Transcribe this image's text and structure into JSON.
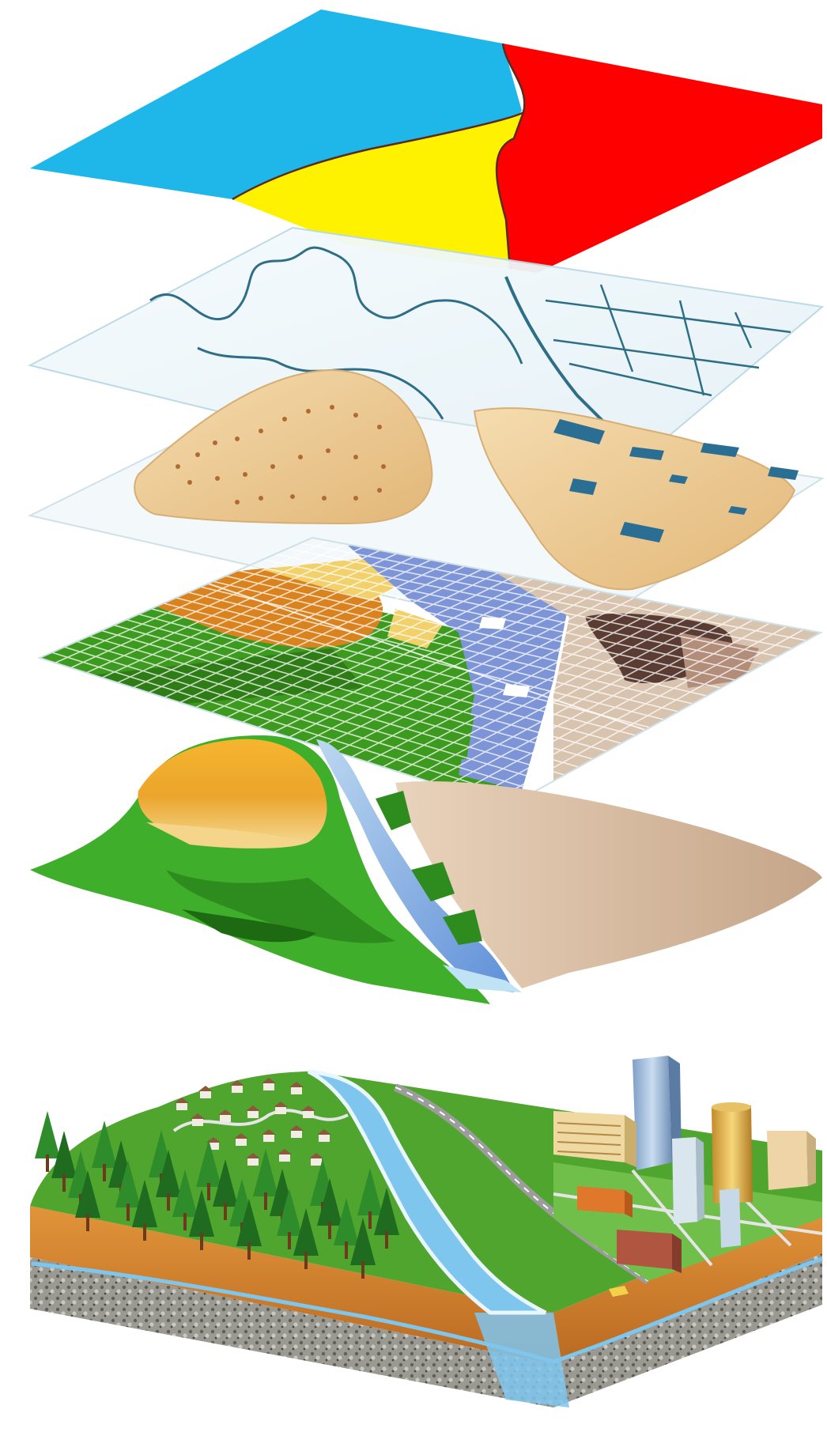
{
  "diagram": {
    "layers": [
      {
        "id": "zones",
        "colors": {
          "water": "#1FB7EA",
          "sand": "#FFF200",
          "fire": "#FF0000"
        }
      },
      {
        "id": "vector-lines",
        "colors": {
          "fill": "#EEF6F9",
          "line": "#2E6E86"
        }
      },
      {
        "id": "terrain-points",
        "colors": {
          "patch": "#E9C48C",
          "dot": "#B06A32",
          "building": "#2B6E93"
        }
      },
      {
        "id": "raster-grid",
        "colors": {
          "green": "#3C9A1E",
          "orange": "#D9821E",
          "blue": "#7D95D6",
          "brown": "#5A3C33"
        }
      },
      {
        "id": "surface",
        "colors": {
          "green": "#3FAE2A",
          "orange": "#F0A21A",
          "river": "#6FA6E0",
          "sand": "#C9A98A"
        }
      },
      {
        "id": "real-world",
        "colors": {
          "soil": "#D8862A",
          "rock": "#8C8C86",
          "water": "#7FC6EE",
          "grass": "#4FA52E",
          "forest": "#1F6B1F"
        }
      }
    ],
    "icons": [
      "pine-tree-icon",
      "house-icon",
      "skyscraper-icon",
      "road-icon",
      "river-icon"
    ]
  }
}
